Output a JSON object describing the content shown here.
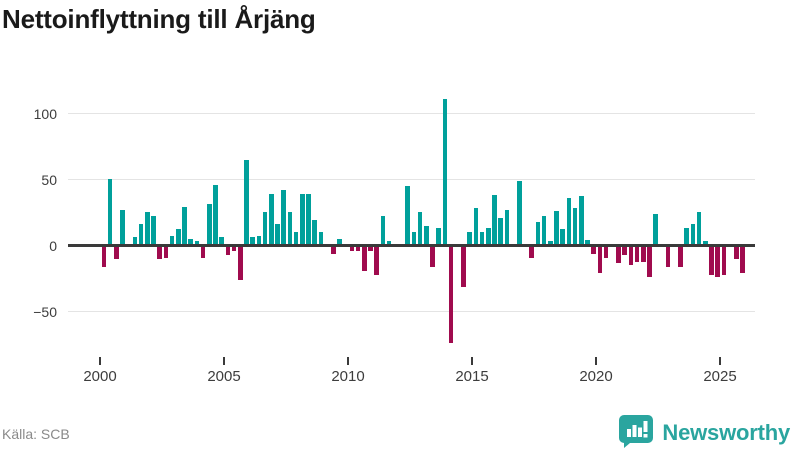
{
  "title": "Nettoinflyttning till Årjäng",
  "source": "Källa: SCB",
  "logo": {
    "text": "Newsworthy"
  },
  "chart_data": {
    "type": "bar",
    "title": "Nettoinflyttning till Årjäng",
    "frequency": "quarterly",
    "start_year": 2000,
    "start_quarter": 1,
    "values": [
      -15,
      49,
      -9,
      26,
      0,
      5,
      15,
      24,
      21,
      -9,
      -8,
      6,
      11,
      28,
      4,
      2,
      -8,
      30,
      45,
      5,
      -6,
      -3,
      -25,
      64,
      5,
      6,
      24,
      38,
      15,
      41,
      24,
      9,
      38,
      38,
      18,
      9,
      0,
      -5,
      4,
      0,
      -3,
      -3,
      -18,
      -3,
      -21,
      21,
      2,
      0,
      0,
      44,
      9,
      24,
      14,
      -15,
      12,
      110,
      -73,
      0,
      -30,
      9,
      27,
      9,
      12,
      37,
      20,
      26,
      0,
      48,
      0,
      -8,
      17,
      21,
      2,
      25,
      11,
      35,
      27,
      36,
      3,
      -5,
      -20,
      -8,
      0,
      -12,
      -6,
      -14,
      -11,
      -11,
      -23,
      23,
      0,
      -15,
      0,
      -15,
      12,
      15,
      24,
      2,
      -21,
      -23,
      -21,
      0,
      -9,
      -20
    ],
    "y_ticks": [
      {
        "label": "100",
        "value": 100
      },
      {
        "label": "50",
        "value": 50
      },
      {
        "label": "0",
        "value": 0
      },
      {
        "label": "−50",
        "value": -50
      }
    ],
    "x_tick_years": [
      "2000",
      "2005",
      "2010",
      "2015",
      "2020",
      "2025"
    ],
    "ylim": [
      -80,
      115
    ],
    "grid": true,
    "legend": false,
    "colors": {
      "positive": "#00a09b",
      "negative": "#a00b4e"
    }
  }
}
